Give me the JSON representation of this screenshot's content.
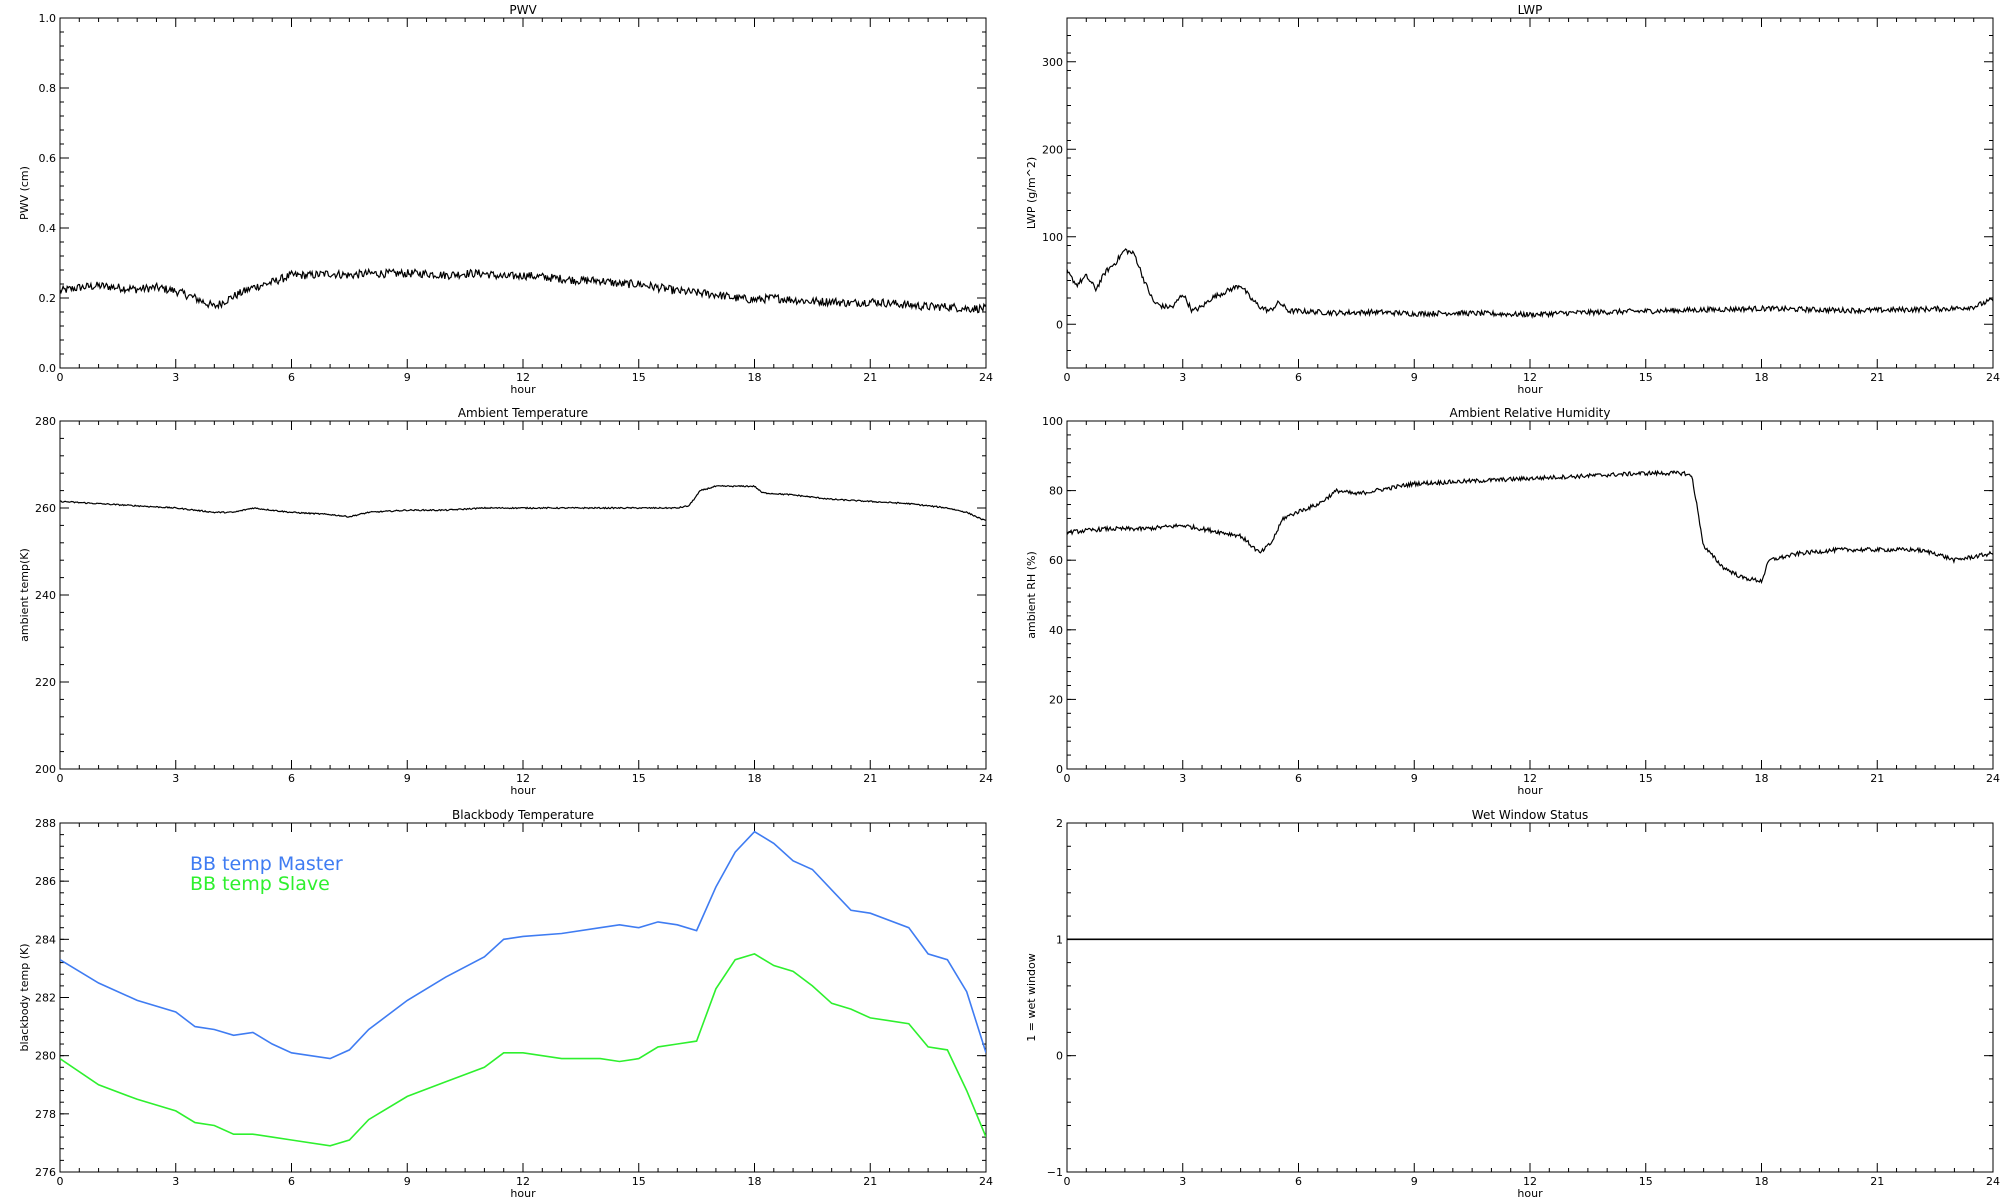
{
  "chart_data": [
    {
      "id": "pwv",
      "type": "line",
      "title": "PWV",
      "xlabel": "hour",
      "ylabel": "PWV (cm)",
      "xlim": [
        0,
        24
      ],
      "ylim": [
        0,
        1
      ],
      "xticks": [
        0,
        3,
        6,
        9,
        12,
        15,
        18,
        21,
        24
      ],
      "yticks": [
        "0.0",
        "0.2",
        "0.4",
        "0.6",
        "0.8",
        "1.0"
      ],
      "series": [
        {
          "color": "#000000",
          "x": [
            0,
            0.5,
            1,
            1.5,
            2,
            2.5,
            3,
            3.5,
            4,
            4.5,
            5,
            5.5,
            6,
            6.5,
            7,
            7.5,
            8,
            8.5,
            9,
            9.5,
            10,
            10.5,
            11,
            11.5,
            12,
            12.5,
            13,
            13.5,
            14,
            14.5,
            15,
            15.5,
            16,
            16.5,
            17,
            17.5,
            18,
            18.5,
            19,
            19.5,
            20,
            20.5,
            21,
            21.5,
            22,
            22.5,
            23,
            23.5,
            24
          ],
          "values": [
            0.22,
            0.23,
            0.235,
            0.23,
            0.225,
            0.23,
            0.22,
            0.2,
            0.175,
            0.205,
            0.23,
            0.245,
            0.265,
            0.265,
            0.27,
            0.265,
            0.27,
            0.27,
            0.27,
            0.27,
            0.265,
            0.27,
            0.27,
            0.26,
            0.265,
            0.26,
            0.255,
            0.25,
            0.25,
            0.24,
            0.24,
            0.23,
            0.22,
            0.215,
            0.21,
            0.2,
            0.195,
            0.2,
            0.195,
            0.19,
            0.19,
            0.185,
            0.19,
            0.185,
            0.18,
            0.175,
            0.175,
            0.17,
            0.17
          ],
          "noise": 0.012
        }
      ]
    },
    {
      "id": "lwp",
      "type": "line",
      "title": "LWP",
      "xlabel": "hour",
      "ylabel": "LWP (g/m^2)",
      "xlim": [
        0,
        24
      ],
      "ylim": [
        -50,
        350
      ],
      "xticks": [
        0,
        3,
        6,
        9,
        12,
        15,
        18,
        21,
        24
      ],
      "yticks": [
        "0",
        "100",
        "200",
        "300"
      ],
      "series": [
        {
          "color": "#000000",
          "x": [
            0,
            0.25,
            0.5,
            0.75,
            1,
            1.25,
            1.5,
            1.75,
            2,
            2.25,
            2.5,
            2.75,
            3,
            3.25,
            3.5,
            3.75,
            4,
            4.25,
            4.5,
            4.75,
            5,
            5.25,
            5.5,
            5.75,
            6,
            7,
            8,
            9,
            10,
            11,
            12,
            13,
            14,
            15,
            16,
            17,
            18,
            19,
            20,
            21,
            22,
            23,
            23.5,
            24
          ],
          "values": [
            60,
            45,
            55,
            40,
            60,
            70,
            85,
            80,
            50,
            25,
            20,
            20,
            35,
            15,
            20,
            30,
            35,
            40,
            45,
            30,
            20,
            15,
            25,
            15,
            15,
            13,
            14,
            12,
            13,
            12,
            11,
            13,
            14,
            15,
            16,
            17,
            18,
            17,
            16,
            16,
            17,
            18,
            20,
            28
          ],
          "noise": 3
        }
      ]
    },
    {
      "id": "ambient-temp",
      "type": "line",
      "title": "Ambient Temperature",
      "xlabel": "hour",
      "ylabel": "ambient temp(K)",
      "xlim": [
        0,
        24
      ],
      "ylim": [
        200,
        280
      ],
      "xticks": [
        0,
        3,
        6,
        9,
        12,
        15,
        18,
        21,
        24
      ],
      "yticks": [
        "200",
        "220",
        "240",
        "260",
        "280"
      ],
      "series": [
        {
          "color": "#000000",
          "x": [
            0,
            1,
            2,
            3,
            4,
            4.5,
            5,
            5.5,
            6,
            7,
            7.5,
            8,
            9,
            10,
            11,
            12,
            13,
            14,
            15,
            16,
            16.3,
            16.6,
            17,
            18,
            18.2,
            19,
            20,
            21,
            22,
            23,
            23.5,
            24
          ],
          "values": [
            261.5,
            261,
            260.5,
            260,
            259,
            259,
            260,
            259.5,
            259,
            258.5,
            258,
            259,
            259.5,
            259.5,
            260,
            260,
            260,
            260,
            260,
            260,
            260.5,
            264,
            265,
            265,
            263.5,
            263,
            262,
            261.5,
            261,
            260,
            259,
            257
          ],
          "noise": 0.15
        }
      ]
    },
    {
      "id": "ambient-rh",
      "type": "line",
      "title": "Ambient Relative Humidity",
      "xlabel": "hour",
      "ylabel": "ambient RH (%)",
      "xlim": [
        0,
        24
      ],
      "ylim": [
        0,
        100
      ],
      "xticks": [
        0,
        3,
        6,
        9,
        12,
        15,
        18,
        21,
        24
      ],
      "yticks": [
        "0",
        "20",
        "40",
        "60",
        "80",
        "100"
      ],
      "series": [
        {
          "color": "#000000",
          "x": [
            0,
            1,
            2,
            3,
            4,
            4.5,
            5,
            5.3,
            5.6,
            6,
            6.5,
            7,
            7.5,
            8,
            9,
            10,
            11,
            12,
            13,
            14,
            15,
            16,
            16.2,
            16.5,
            17,
            17.5,
            18,
            18.2,
            19,
            20,
            21,
            22,
            22.5,
            23,
            23.5,
            24
          ],
          "values": [
            68,
            69,
            69,
            70,
            68,
            67,
            62,
            65,
            72,
            74,
            76,
            80,
            79,
            80,
            82,
            82.5,
            83,
            83.5,
            84,
            84.5,
            85,
            85,
            84,
            64,
            58,
            55,
            54,
            60,
            62,
            63,
            63,
            63,
            62,
            60,
            61,
            62
          ],
          "noise": 0.6
        }
      ]
    },
    {
      "id": "blackbody-temp",
      "type": "line",
      "title": "Blackbody Temperature",
      "xlabel": "hour",
      "ylabel": "blackbody temp (K)",
      "xlim": [
        0,
        24
      ],
      "ylim": [
        276,
        288
      ],
      "xticks": [
        0,
        3,
        6,
        9,
        12,
        15,
        18,
        21,
        24
      ],
      "yticks": [
        "276",
        "278",
        "280",
        "282",
        "284",
        "286",
        "288"
      ],
      "legend": [
        "BB temp Master",
        "BB temp Slave"
      ],
      "series": [
        {
          "name": "BB temp Master",
          "color": "#3f7cf2",
          "x": [
            0,
            1,
            2,
            3,
            3.5,
            4,
            4.5,
            5,
            5.5,
            6,
            7,
            7.5,
            8,
            9,
            10,
            11,
            11.5,
            12,
            13,
            14,
            14.5,
            15,
            15.5,
            16,
            16.5,
            17,
            17.5,
            18,
            18.5,
            19,
            19.5,
            20,
            20.5,
            21,
            22,
            22.5,
            23,
            23.5,
            24
          ],
          "values": [
            283.3,
            282.5,
            281.9,
            281.5,
            281,
            280.9,
            280.7,
            280.8,
            280.4,
            280.1,
            279.9,
            280.2,
            280.9,
            281.9,
            282.7,
            283.4,
            284,
            284.1,
            284.2,
            284.4,
            284.5,
            284.4,
            284.6,
            284.5,
            284.3,
            285.8,
            287,
            287.7,
            287.3,
            286.7,
            286.4,
            285.7,
            285,
            284.9,
            284.4,
            283.5,
            283.3,
            282.2,
            280.1
          ],
          "noise": 0
        },
        {
          "name": "BB temp Slave",
          "color": "#2ef02e",
          "x": [
            0,
            1,
            2,
            3,
            3.5,
            4,
            4.5,
            5,
            5.5,
            6,
            7,
            7.5,
            8,
            9,
            10,
            11,
            11.5,
            12,
            13,
            14,
            14.5,
            15,
            15.5,
            16,
            16.5,
            17,
            17.5,
            18,
            18.5,
            19,
            19.5,
            20,
            20.5,
            21,
            22,
            22.5,
            23,
            23.5,
            24
          ],
          "values": [
            279.9,
            279,
            278.5,
            278.1,
            277.7,
            277.6,
            277.3,
            277.3,
            277.2,
            277.1,
            276.9,
            277.1,
            277.8,
            278.6,
            279.1,
            279.6,
            280.1,
            280.1,
            279.9,
            279.9,
            279.8,
            279.9,
            280.3,
            280.4,
            280.5,
            282.3,
            283.3,
            283.5,
            283.1,
            282.9,
            282.4,
            281.8,
            281.6,
            281.3,
            281.1,
            280.3,
            280.2,
            278.8,
            277.2
          ],
          "noise": 0
        }
      ]
    },
    {
      "id": "wet-window",
      "type": "line",
      "title": "Wet Window Status",
      "xlabel": "hour",
      "ylabel": "1 = wet window",
      "xlim": [
        0,
        24
      ],
      "ylim": [
        -1,
        2
      ],
      "xticks": [
        0,
        3,
        6,
        9,
        12,
        15,
        18,
        21,
        24
      ],
      "yticks": [
        "−1",
        "0",
        "1",
        "2"
      ],
      "series": [
        {
          "color": "#000000",
          "x": [
            0,
            24
          ],
          "values": [
            1,
            1
          ],
          "noise": 0
        }
      ]
    }
  ]
}
